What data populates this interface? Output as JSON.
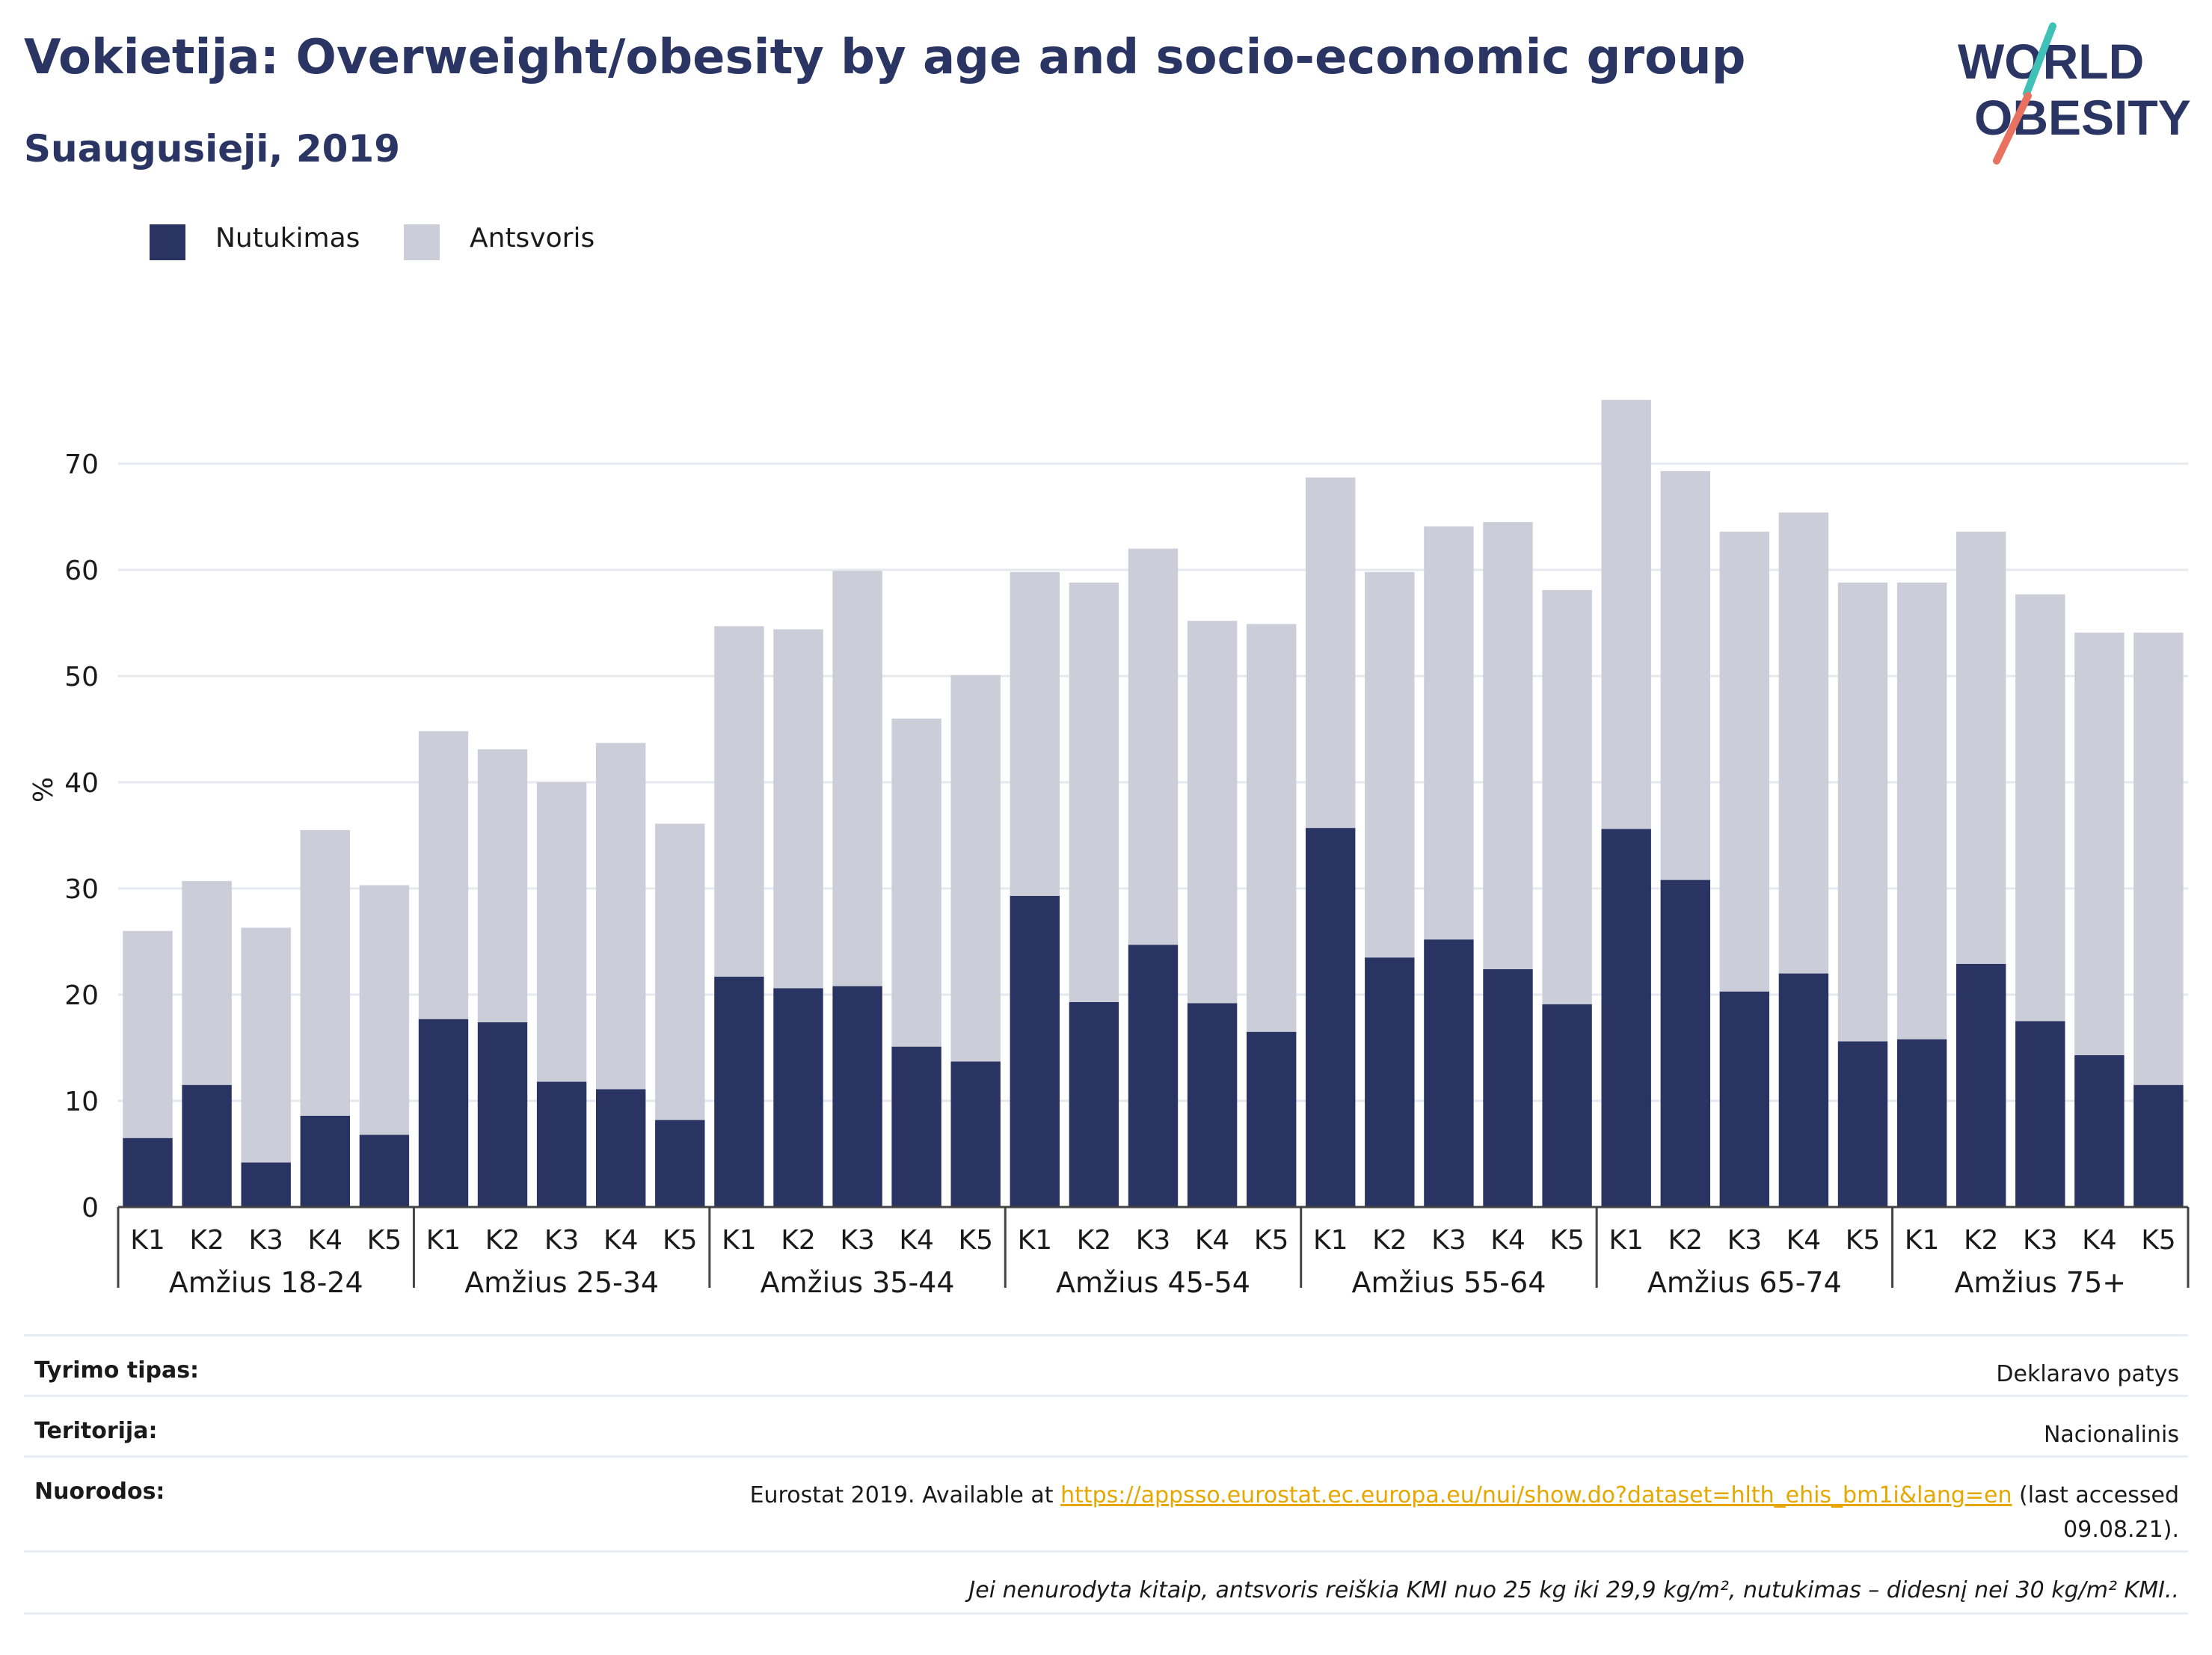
{
  "header": {
    "title": "Vokietija: Overweight/obesity by age and socio-economic group",
    "subtitle": "Suaugusieji, 2019"
  },
  "logo": {
    "line1": "WORLD",
    "line2": "OBESITY",
    "colors": [
      "#2a3563",
      "#3fc1b8",
      "#e9715f"
    ]
  },
  "legend": {
    "items": [
      {
        "label": "Nutukimas",
        "color": "#293462"
      },
      {
        "label": "Antsvoris",
        "color": "#cbcdd8"
      }
    ]
  },
  "chart_data": {
    "type": "bar",
    "stacked": true,
    "ylabel": "%",
    "ylim": [
      0,
      80
    ],
    "yticks": [
      0,
      10,
      20,
      30,
      40,
      50,
      60,
      70
    ],
    "grid": true,
    "legend_position": "top-left",
    "groups": [
      "Amžius 18-24",
      "Amžius 25-34",
      "Amžius 35-44",
      "Amžius 45-54",
      "Amžius 55-64",
      "Amžius 65-74",
      "Amžius 75+"
    ],
    "subcategories": [
      "K1",
      "K2",
      "K3",
      "K4",
      "K5"
    ],
    "series": [
      {
        "name": "Nutukimas",
        "color": "#293462",
        "values": [
          6.5,
          11.5,
          4.2,
          8.6,
          6.8,
          17.7,
          17.4,
          11.8,
          11.1,
          8.2,
          21.7,
          20.6,
          20.8,
          15.1,
          13.7,
          29.3,
          19.3,
          24.7,
          19.2,
          16.5,
          35.7,
          23.5,
          25.2,
          22.4,
          19.1,
          35.6,
          30.8,
          20.3,
          22.0,
          15.6,
          15.8,
          22.9,
          17.5,
          14.3,
          11.5
        ]
      },
      {
        "name": "Antsvoris",
        "color": "#cbcdd8",
        "values": [
          19.5,
          19.2,
          22.1,
          26.9,
          23.5,
          27.1,
          25.7,
          28.2,
          32.6,
          27.9,
          33.0,
          33.8,
          39.1,
          30.9,
          36.4,
          30.5,
          39.5,
          37.3,
          36.0,
          38.4,
          33.0,
          36.3,
          38.9,
          42.1,
          39.0,
          40.4,
          38.5,
          43.3,
          43.4,
          43.2,
          43.0,
          40.7,
          40.2,
          39.8,
          42.6
        ]
      }
    ]
  },
  "footer": {
    "rows": [
      {
        "label": "Tyrimo tipas:",
        "value": "Deklaravo patys"
      },
      {
        "label": "Teritorija:",
        "value": "Nacionalinis"
      }
    ],
    "references": {
      "label": "Nuorodos:",
      "text_before": "Eurostat 2019. Available at ",
      "link": "https://appsso.eurostat.ec.europa.eu/nui/show.do?dataset=hlth_ehis_bm1i&lang=en",
      "text_after": " (last accessed 09.08.21)."
    },
    "note": "Jei nenurodyta kitaip, antsvoris reiškia KMI nuo 25 kg iki 29,9 kg/m², nutukimas – didesnį nei 30 kg/m² KMI.."
  }
}
